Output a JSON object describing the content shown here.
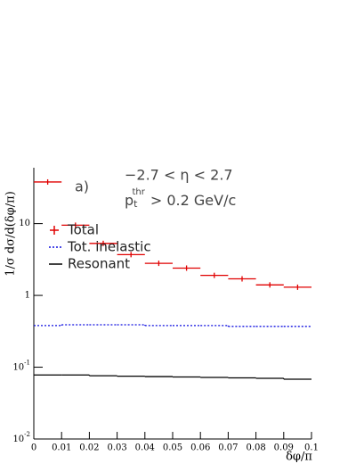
{
  "chart_data": {
    "type": "histogram",
    "x_label": "δφ/π",
    "y_label": "1/σ dσ/d(δφ/π)",
    "annotations": {
      "panel": "a)",
      "range": "−2.7 < η < 2.7",
      "cut_p": "p",
      "cut_sub": "t",
      "cut_sup": "thr",
      "cut_rest": "> 0.2 GeV/c"
    },
    "bins": [
      0,
      0.01,
      0.02,
      0.03,
      0.04,
      0.05,
      0.06,
      0.07,
      0.08,
      0.09,
      0.1
    ],
    "series": [
      {
        "name": "Total",
        "color": "#e00000",
        "style": "cross",
        "values": [
          38,
          9.5,
          5.3,
          3.7,
          2.8,
          2.4,
          1.9,
          1.7,
          1.4,
          1.3
        ]
      },
      {
        "name": "Tot. inelastic",
        "color": "#1010e0",
        "style": "dotted",
        "values": [
          0.38,
          0.39,
          0.39,
          0.39,
          0.38,
          0.38,
          0.38,
          0.37,
          0.37,
          0.37
        ]
      },
      {
        "name": "Resonant",
        "color": "#000000",
        "style": "solid",
        "values": [
          0.078,
          0.078,
          0.076,
          0.075,
          0.074,
          0.073,
          0.072,
          0.071,
          0.07,
          0.068
        ]
      }
    ],
    "xlim": [
      0,
      0.1
    ],
    "xticks": [
      0,
      0.01,
      0.02,
      0.03,
      0.04,
      0.05,
      0.06,
      0.07,
      0.08,
      0.09,
      0.1
    ],
    "ylim": [
      0.01,
      60
    ],
    "log_y": true,
    "yticks": [
      {
        "value": 0.01,
        "label": "10",
        "exp": "-2"
      },
      {
        "value": 0.1,
        "label": "10",
        "exp": "-1"
      },
      1,
      10
    ],
    "legend": "left"
  }
}
